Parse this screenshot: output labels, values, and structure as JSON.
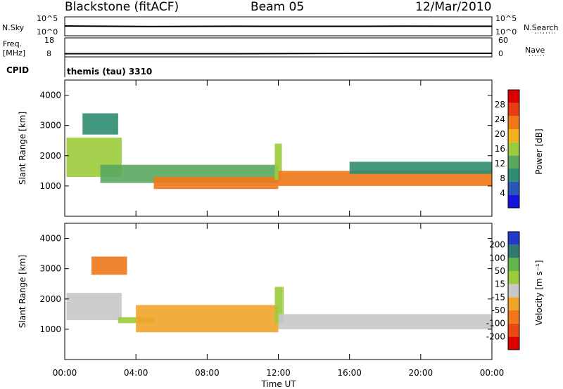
{
  "header": {
    "station": "Blackstone (fitACF)",
    "beam": "Beam 05",
    "date": "12/Mar/2010"
  },
  "side_labels": {
    "nsky": "N.Sky",
    "freq": "Freq.",
    "mhz": "[MHz]",
    "cpid": "CPID",
    "nsearch": "N.Search",
    "nave": "Nave",
    "nsky_top": "10^5",
    "nsky_bot": "10^0",
    "freq_top": "18",
    "freq_bot": "8",
    "nave_top": "60",
    "nave_bot": "0"
  },
  "cpid_text": "themis (tau) 3310",
  "xaxis": {
    "title": "Time UT",
    "ticks": [
      "00:00",
      "04:00",
      "08:00",
      "12:00",
      "16:00",
      "20:00",
      "00:00"
    ]
  },
  "panels": {
    "power": {
      "ylabel": "Slant Range [km]",
      "yticks": [
        "1000",
        "2000",
        "3000",
        "4000"
      ],
      "cbar_label": "Power [dB]",
      "cbar_ticks": [
        "4",
        "8",
        "12",
        "16",
        "20",
        "24",
        "28"
      ],
      "colors": [
        "#1414dc",
        "#2a56b8",
        "#2e8c70",
        "#5aa860",
        "#9ccc3c",
        "#f2b01e",
        "#f07818",
        "#e63c14",
        "#dc0000"
      ]
    },
    "velocity": {
      "ylabel": "Slant Range [km]",
      "yticks": [
        "1000",
        "2000",
        "3000",
        "4000"
      ],
      "cbar_label": "Velocity [m s⁻¹]",
      "cbar_ticks": [
        "200",
        "100",
        "50",
        "15",
        "-15",
        "-50",
        "-100",
        "-200"
      ],
      "colors": [
        "#1e3cc8",
        "#2e7a6e",
        "#64b44c",
        "#9ccc3c",
        "#c8c8c8",
        "#f0a428",
        "#f07818",
        "#eb4614",
        "#dc0000"
      ]
    }
  },
  "chart_data": {
    "type": "heatmap",
    "title": "Blackstone (fitACF)  Beam 05  12/Mar/2010",
    "xlabel": "Time UT",
    "ylabel": "Slant Range [km]",
    "xlim_hours": [
      0,
      24
    ],
    "ylim_km": [
      0,
      4500
    ],
    "series": [
      {
        "name": "Power",
        "unit": "dB",
        "range": [
          0,
          32
        ],
        "bands": [
          {
            "t_start": 0.1,
            "t_end": 3.2,
            "range_start_km": 1300,
            "range_end_km": 2600,
            "level_db": 16
          },
          {
            "t_start": 1.0,
            "t_end": 3.0,
            "range_start_km": 2700,
            "range_end_km": 3400,
            "level_db": 8
          },
          {
            "t_start": 2.0,
            "t_end": 12.0,
            "range_start_km": 1100,
            "range_end_km": 1700,
            "level_db": 12
          },
          {
            "t_start": 5.0,
            "t_end": 12.0,
            "range_start_km": 900,
            "range_end_km": 1300,
            "level_db": 24
          },
          {
            "t_start": 11.8,
            "t_end": 12.2,
            "range_start_km": 1200,
            "range_end_km": 2400,
            "level_db": 16
          },
          {
            "t_start": 12.0,
            "t_end": 24.0,
            "range_start_km": 1000,
            "range_end_km": 1500,
            "level_db": 24
          },
          {
            "t_start": 16.0,
            "t_end": 24.0,
            "range_start_km": 1400,
            "range_end_km": 1800,
            "level_db": 8
          }
        ]
      },
      {
        "name": "Velocity",
        "unit": "m s-1",
        "range": [
          -200,
          200
        ],
        "bands": [
          {
            "t_start": 0.1,
            "t_end": 3.2,
            "range_start_km": 1300,
            "range_end_km": 2200,
            "value_ms": 0
          },
          {
            "t_start": 1.5,
            "t_end": 3.5,
            "range_start_km": 2800,
            "range_end_km": 3400,
            "value_ms": -100
          },
          {
            "t_start": 3.0,
            "t_end": 5.0,
            "range_start_km": 1200,
            "range_end_km": 1400,
            "value_ms": 50
          },
          {
            "t_start": 4.0,
            "t_end": 12.0,
            "range_start_km": 900,
            "range_end_km": 1800,
            "value_ms": -50
          },
          {
            "t_start": 11.8,
            "t_end": 12.3,
            "range_start_km": 1200,
            "range_end_km": 2400,
            "value_ms": 50
          },
          {
            "t_start": 12.0,
            "t_end": 24.0,
            "range_start_km": 1000,
            "range_end_km": 1500,
            "value_ms": 0
          }
        ]
      }
    ],
    "nsky_trace": [
      1.0,
      0.95,
      0.97,
      0.96,
      0.98,
      0.97
    ],
    "freq_trace_mhz": [
      10.0,
      10.0,
      10.0,
      10.2,
      10.3,
      10.3
    ]
  }
}
